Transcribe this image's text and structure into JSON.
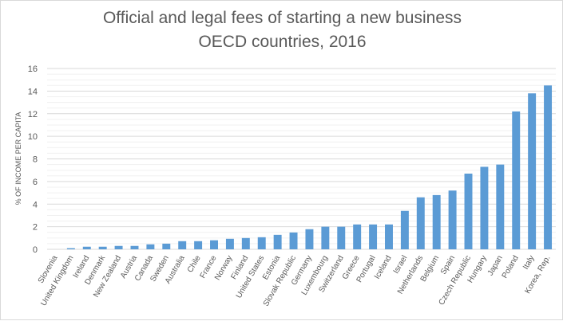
{
  "chart_data": {
    "type": "bar",
    "title": "Official and legal fees of starting a new business",
    "subtitle": "OECD countries, 2016",
    "xlabel": "",
    "ylabel": "% OF INCOME PER CAPITA",
    "ylim": [
      0,
      16
    ],
    "yticks": [
      0,
      2,
      4,
      6,
      8,
      10,
      12,
      14,
      16
    ],
    "grid": true,
    "bar_color": "#5b9bd5",
    "categories": [
      "Slovenia",
      "United Kingdom",
      "Ireland",
      "Denmark",
      "New Zealand",
      "Austria",
      "Canada",
      "Sweden",
      "Australia",
      "Chile",
      "France",
      "Norway",
      "Finland",
      "United States",
      "Estonia",
      "Slovak Republic",
      "Germany",
      "Luxembourg",
      "Switzerland",
      "Greece",
      "Portugal",
      "Iceland",
      "Israel",
      "Netherlands",
      "Belgium",
      "Spain",
      "Czech Republic",
      "Hungary",
      "Japan",
      "Poland",
      "Italy",
      "Korea, Rep."
    ],
    "values": [
      0.0,
      0.1,
      0.23,
      0.23,
      0.3,
      0.3,
      0.44,
      0.5,
      0.72,
      0.72,
      0.8,
      0.93,
      1.0,
      1.07,
      1.28,
      1.49,
      1.78,
      2.0,
      2.0,
      2.2,
      2.2,
      2.2,
      3.4,
      4.6,
      4.8,
      5.2,
      6.7,
      7.3,
      7.5,
      12.2,
      13.8,
      14.5
    ]
  }
}
